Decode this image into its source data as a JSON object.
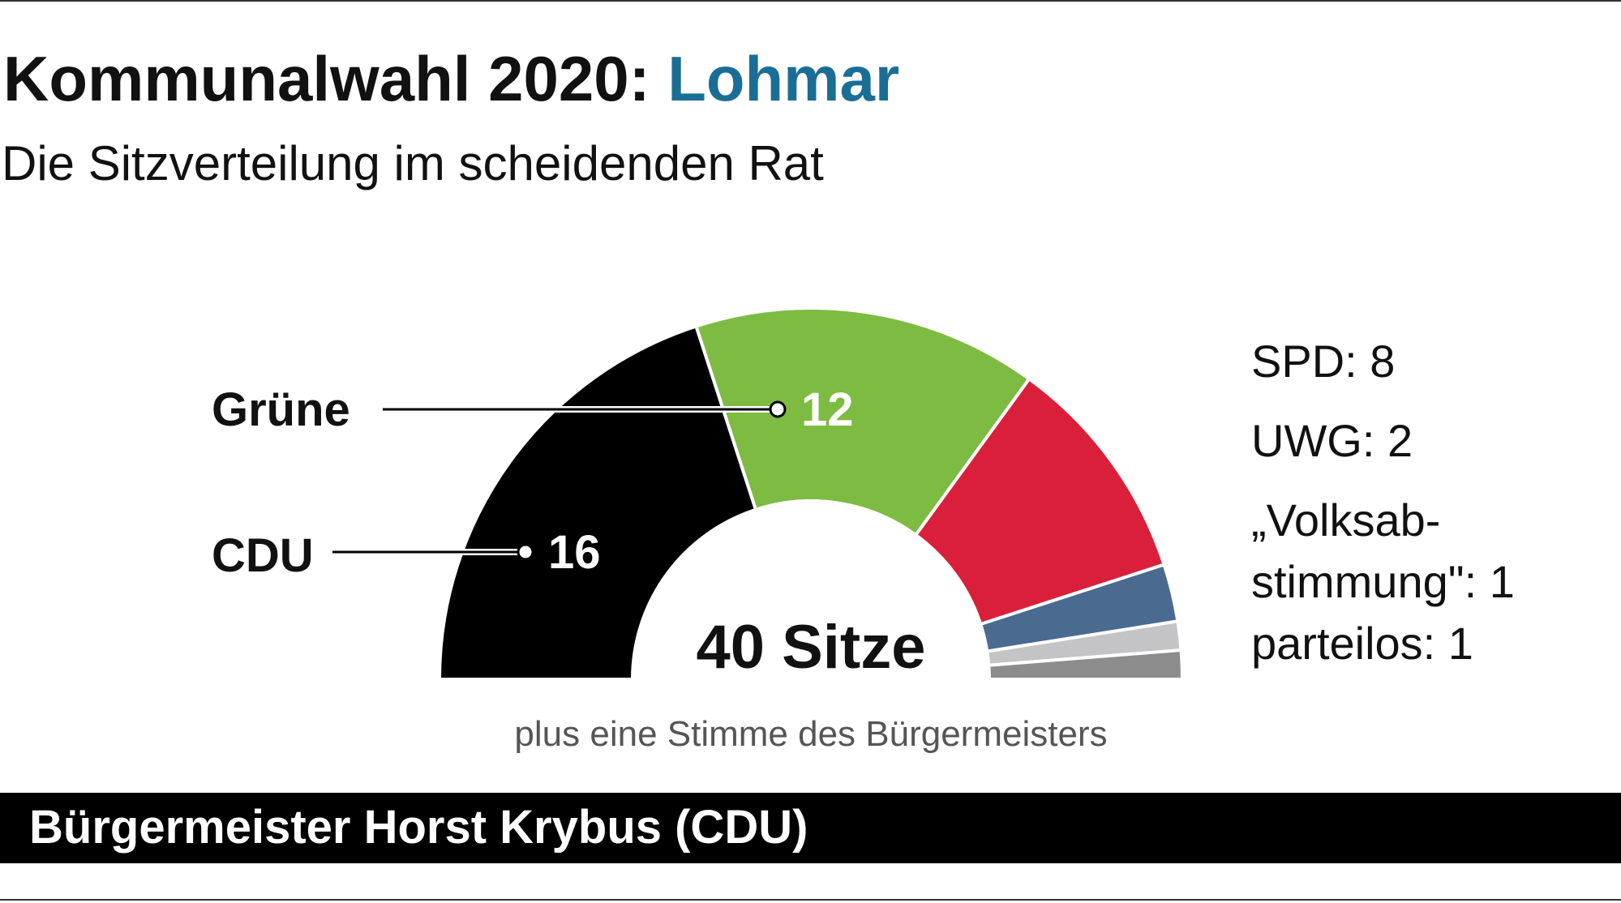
{
  "chart_data": {
    "type": "half-donut",
    "title": "Kommunalwahl 2020: ",
    "title_highlight": "Lohmar",
    "subtitle": "Die Sitzverteilung im scheidenden Rat",
    "center_label": "40 Sitze",
    "note": "plus eine Stimme des Bürgermeisters",
    "footer": "Bürgermeister Horst Krybus (CDU)",
    "categories": [
      "CDU",
      "Grüne",
      null,
      null,
      null,
      null
    ],
    "values": [
      16,
      12,
      8,
      2,
      1,
      1
    ],
    "value_labels": [
      "16",
      "12",
      "SPD: 8",
      "UWG: 2",
      "„Volksab-\nstimmung\": 1",
      "parteilos: 1"
    ],
    "colors": [
      "#000000",
      "#7dbb42",
      "#da1f3a",
      "#4b6a90",
      "#c4c4c6",
      "#8c8c8c"
    ]
  }
}
